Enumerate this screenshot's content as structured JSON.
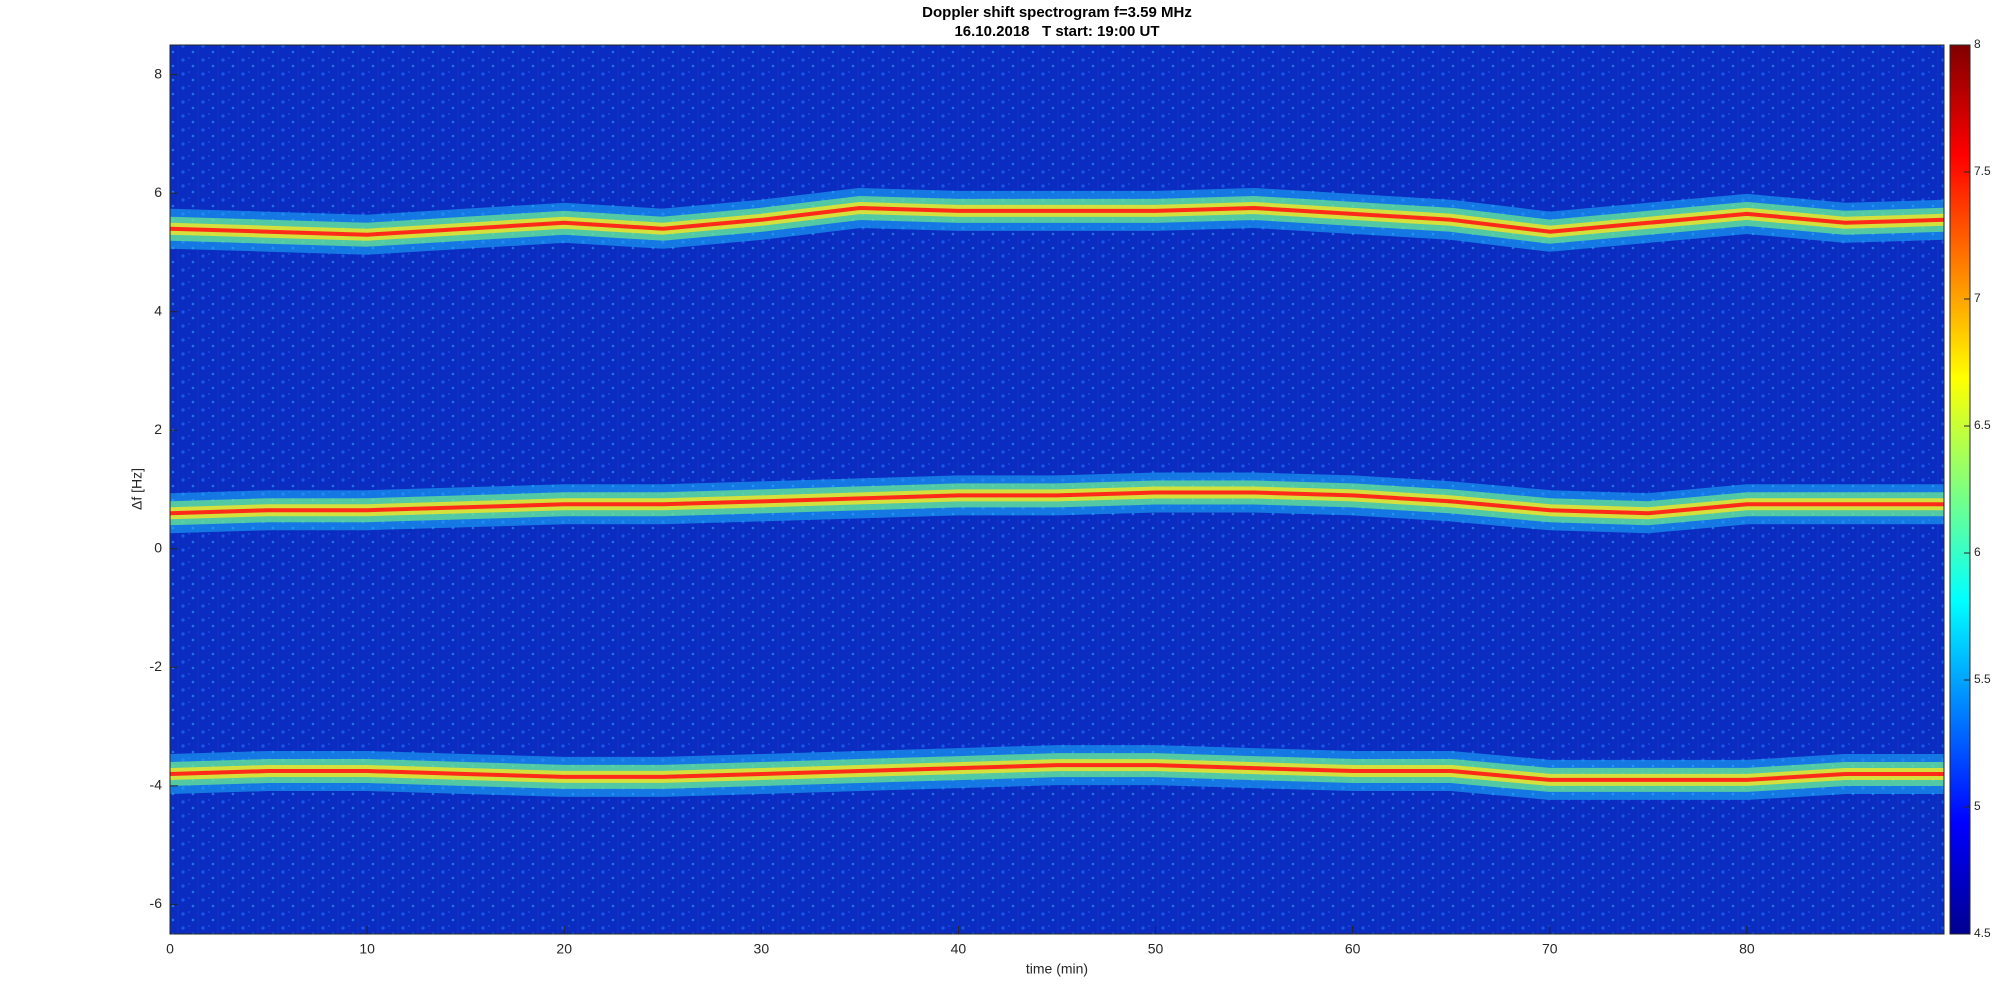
{
  "chart_data": {
    "type": "spectrogram",
    "title": "Doppler shift spectrogram f=3.59 MHz",
    "subtitle": "16.10.2018   T start: 19:00 UT",
    "x_label": "time (min)",
    "y_label": "Δf [Hz]",
    "xlim": [
      0,
      90
    ],
    "ylim": [
      -6.5,
      8.5
    ],
    "xticks": [
      0,
      10,
      20,
      30,
      40,
      50,
      60,
      70,
      80
    ],
    "yticks": [
      -6,
      -4,
      -2,
      0,
      2,
      4,
      6,
      8
    ],
    "x": [
      0,
      5,
      10,
      15,
      20,
      25,
      30,
      35,
      40,
      45,
      50,
      55,
      60,
      65,
      70,
      75,
      80,
      85,
      90
    ],
    "series": [
      {
        "color": "#ff2a1a",
        "values": [
          5.4,
          5.35,
          5.3,
          5.4,
          5.5,
          5.4,
          5.55,
          5.75,
          5.7,
          5.7,
          5.7,
          5.75,
          5.65,
          5.55,
          5.35,
          5.5,
          5.65,
          5.5,
          5.55
        ]
      },
      {
        "color": "#ff2a1a",
        "values": [
          0.6,
          0.65,
          0.65,
          0.7,
          0.75,
          0.75,
          0.8,
          0.85,
          0.9,
          0.9,
          0.95,
          0.95,
          0.9,
          0.8,
          0.65,
          0.6,
          0.75,
          0.75,
          0.75
        ]
      },
      {
        "color": "#ff2a1a",
        "values": [
          -3.8,
          -3.75,
          -3.75,
          -3.8,
          -3.85,
          -3.85,
          -3.8,
          -3.75,
          -3.7,
          -3.65,
          -3.65,
          -3.7,
          -3.75,
          -3.75,
          -3.9,
          -3.9,
          -3.9,
          -3.8,
          -3.8
        ]
      }
    ],
    "clim": [
      4.5,
      8
    ],
    "cticks": [
      4.5,
      5,
      5.5,
      6,
      6.5,
      7,
      7.5,
      8
    ],
    "colormap": "jet",
    "background_color": "#0b2cc0"
  }
}
